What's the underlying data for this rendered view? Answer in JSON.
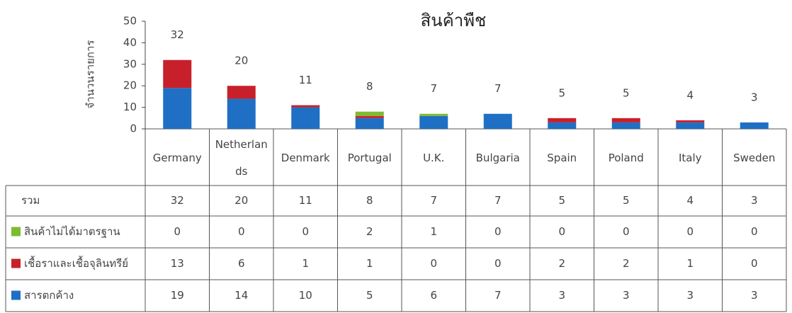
{
  "chart_data": {
    "type": "bar",
    "stacked": true,
    "title": "สินค้าพืช",
    "y_label": "จำนวนรายการ",
    "categories": [
      "Germany",
      "Netherlands",
      "Denmark",
      "Portugal",
      "U.K.",
      "Bulgaria",
      "Spain",
      "Poland",
      "Italy",
      "Sweden"
    ],
    "series": [
      {
        "name": "สารตกค้าง",
        "color": "#1f6fc5",
        "values": [
          19,
          14,
          10,
          5,
          6,
          7,
          3,
          3,
          3,
          3
        ]
      },
      {
        "name": "เชื้อราและเชื้อจุลินทรีย์",
        "color": "#c8202a",
        "values": [
          13,
          6,
          1,
          1,
          0,
          0,
          2,
          2,
          1,
          0
        ]
      },
      {
        "name": "สินค้าไม่ได้มาตรฐาน",
        "color": "#7dbb2f",
        "values": [
          0,
          0,
          0,
          2,
          1,
          0,
          0,
          0,
          0,
          0
        ]
      }
    ],
    "total_label": "รวม",
    "totals": [
      32,
      20,
      11,
      8,
      7,
      7,
      5,
      5,
      4,
      3
    ],
    "ylim": [
      0,
      50
    ],
    "yticks": [
      0,
      10,
      20,
      30,
      40,
      50
    ]
  }
}
